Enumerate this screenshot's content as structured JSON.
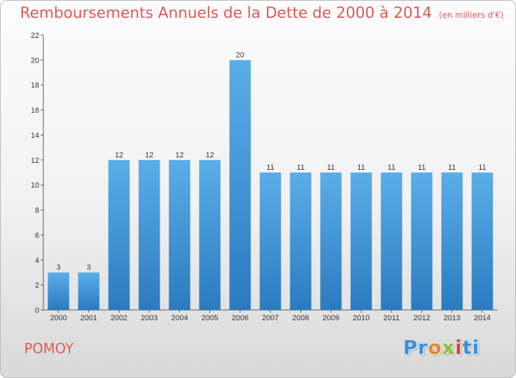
{
  "title": "Remboursements Annuels de la Dette de 2000 à 2014",
  "subtitle": "(en milliers d'€)",
  "commune": "POMOY",
  "brand": {
    "letters": [
      "Pr",
      "o",
      "x",
      "i",
      "ti"
    ],
    "colors": [
      "#3a8fd8",
      "#e08a2a",
      "#8cbf3c",
      "#d9473f",
      "#3a8fd8"
    ]
  },
  "chart_data": {
    "type": "bar",
    "title": "Remboursements Annuels de la Dette de 2000 à 2014",
    "subtitle": "(en milliers d'€)",
    "xlabel": "",
    "ylabel": "",
    "categories": [
      "2000",
      "2001",
      "2002",
      "2003",
      "2004",
      "2005",
      "2006",
      "2007",
      "2008",
      "2009",
      "2010",
      "2011",
      "2012",
      "2013",
      "2014"
    ],
    "values": [
      3,
      3,
      12,
      12,
      12,
      12,
      20,
      11,
      11,
      11,
      11,
      11,
      11,
      11,
      11
    ],
    "ylim": [
      0,
      22
    ],
    "yticks": [
      0,
      2,
      4,
      6,
      8,
      10,
      12,
      14,
      16,
      18,
      20,
      22
    ],
    "grid": false,
    "bar_color": "#3c95da"
  }
}
